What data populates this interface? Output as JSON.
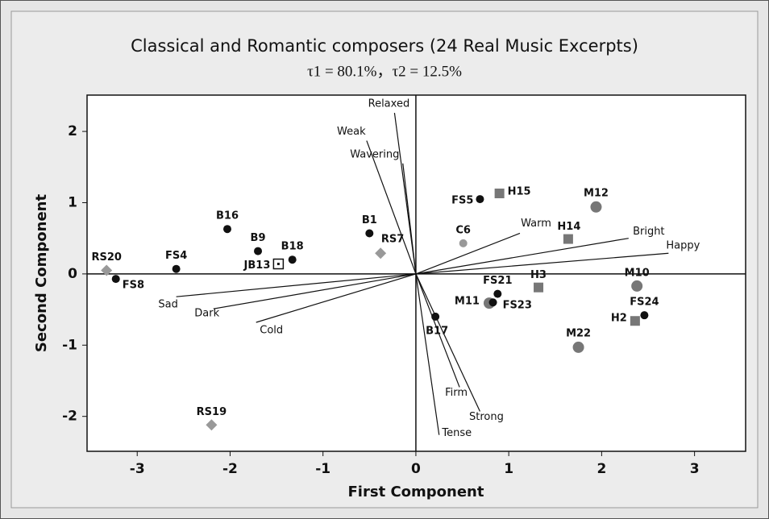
{
  "chart_data": {
    "type": "biplot",
    "title": "Classical and Romantic composers (24 Real Music Excerpts)",
    "subtitle": "τ1 = 80.1%，τ2 = 12.5%",
    "xlabel": "First Component",
    "ylabel": "Second Component",
    "xlim": [
      -3.54,
      3.55
    ],
    "ylim": [
      -2.49,
      2.51
    ],
    "xticks": [
      -3,
      -2,
      -1,
      0,
      1,
      2,
      3
    ],
    "yticks": [
      -2,
      -1,
      0,
      1,
      2
    ],
    "points": [
      {
        "label": "RS20",
        "x": -3.33,
        "y": 0.05,
        "shape": "diamond",
        "color": "#999999"
      },
      {
        "label": "FS8",
        "x": -3.23,
        "y": -0.07,
        "shape": "circle",
        "color": "#111111"
      },
      {
        "label": "FS4",
        "x": -2.58,
        "y": 0.07,
        "shape": "circle",
        "color": "#111111"
      },
      {
        "label": "B16",
        "x": -2.03,
        "y": 0.63,
        "shape": "circle",
        "color": "#111111"
      },
      {
        "label": "B9",
        "x": -1.7,
        "y": 0.32,
        "shape": "circle",
        "color": "#111111"
      },
      {
        "label": "JB13",
        "x": -1.48,
        "y": 0.14,
        "shape": "open-square",
        "color": "#111111"
      },
      {
        "label": "B18",
        "x": -1.33,
        "y": 0.2,
        "shape": "circle",
        "color": "#111111"
      },
      {
        "label": "B1",
        "x": -0.5,
        "y": 0.57,
        "shape": "circle",
        "color": "#111111"
      },
      {
        "label": "RS7",
        "x": -0.38,
        "y": 0.29,
        "shape": "diamond",
        "color": "#999999"
      },
      {
        "label": "C6",
        "x": 0.51,
        "y": 0.43,
        "shape": "circle",
        "color": "#999999"
      },
      {
        "label": "FS5",
        "x": 0.69,
        "y": 1.05,
        "shape": "circle",
        "color": "#111111"
      },
      {
        "label": "H15",
        "x": 0.9,
        "y": 1.13,
        "shape": "square",
        "color": "#777777"
      },
      {
        "label": "M12",
        "x": 1.94,
        "y": 0.94,
        "shape": "big-circle",
        "color": "#777777"
      },
      {
        "label": "H14",
        "x": 1.64,
        "y": 0.49,
        "shape": "square",
        "color": "#777777"
      },
      {
        "label": "H3",
        "x": 1.32,
        "y": -0.19,
        "shape": "square",
        "color": "#777777"
      },
      {
        "label": "FS21",
        "x": 0.88,
        "y": -0.28,
        "shape": "circle",
        "color": "#111111"
      },
      {
        "label": "M11",
        "x": 0.79,
        "y": -0.41,
        "shape": "big-circle",
        "color": "#777777"
      },
      {
        "label": "FS23",
        "x": 0.83,
        "y": -0.4,
        "shape": "circle",
        "color": "#111111"
      },
      {
        "label": "B17",
        "x": 0.21,
        "y": -0.6,
        "shape": "circle",
        "color": "#111111"
      },
      {
        "label": "M10",
        "x": 2.38,
        "y": -0.17,
        "shape": "big-circle",
        "color": "#777777"
      },
      {
        "label": "FS24",
        "x": 2.46,
        "y": -0.58,
        "shape": "circle",
        "color": "#111111"
      },
      {
        "label": "H2",
        "x": 2.36,
        "y": -0.66,
        "shape": "square",
        "color": "#777777"
      },
      {
        "label": "M22",
        "x": 1.75,
        "y": -1.03,
        "shape": "big-circle",
        "color": "#777777"
      },
      {
        "label": "RS19",
        "x": -2.2,
        "y": -2.12,
        "shape": "diamond",
        "color": "#999999"
      }
    ],
    "vectors": [
      {
        "label": "Relaxed",
        "x": -0.23,
        "y": 2.26
      },
      {
        "label": "Weak",
        "x": -0.53,
        "y": 1.87
      },
      {
        "label": "Wavering",
        "x": -0.14,
        "y": 1.55
      },
      {
        "label": "Warm",
        "x": 1.12,
        "y": 0.57
      },
      {
        "label": "Bright",
        "x": 2.29,
        "y": 0.5
      },
      {
        "label": "Happy",
        "x": 2.72,
        "y": 0.29
      },
      {
        "label": "Sad",
        "x": -2.58,
        "y": -0.32
      },
      {
        "label": "Dark",
        "x": -2.18,
        "y": -0.49
      },
      {
        "label": "Cold",
        "x": -1.72,
        "y": -0.68
      },
      {
        "label": "Firm",
        "x": 0.47,
        "y": -1.59
      },
      {
        "label": "Strong",
        "x": 0.69,
        "y": -1.93
      },
      {
        "label": "Tense",
        "x": 0.25,
        "y": -2.26
      }
    ]
  }
}
